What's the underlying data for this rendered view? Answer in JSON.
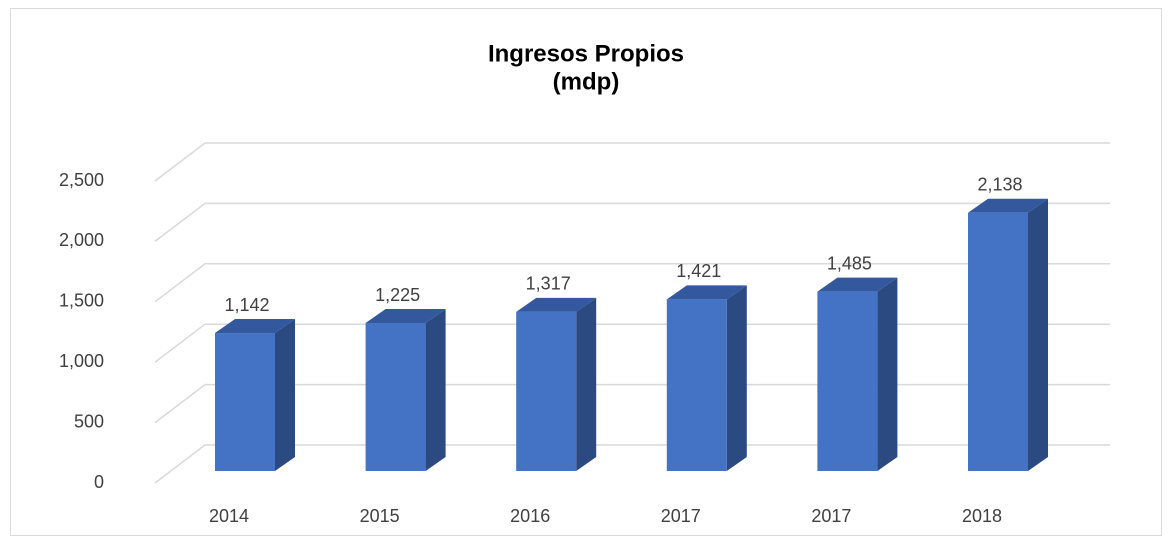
{
  "chart_data": {
    "type": "bar3d",
    "title": [
      "Ingresos Propios",
      "(mdp)"
    ],
    "categories": [
      "2014",
      "2015",
      "2016",
      "2017",
      "2017",
      "2018"
    ],
    "values": [
      1142,
      1225,
      1317,
      1421,
      1485,
      2138
    ],
    "value_labels": [
      "1,142",
      "1,225",
      "1,317",
      "1,421",
      "1,485",
      "2,138"
    ],
    "color": "#4472c4",
    "ylim": [
      0,
      2500
    ],
    "yticks": [
      0,
      500,
      {
        "value": 1000,
        "label": "1,000"
      },
      {
        "value": 1500,
        "label": "1,500"
      },
      {
        "value": 2000,
        "label": "2,000"
      },
      {
        "value": 2500,
        "label": "2,500"
      }
    ],
    "grid": true
  }
}
